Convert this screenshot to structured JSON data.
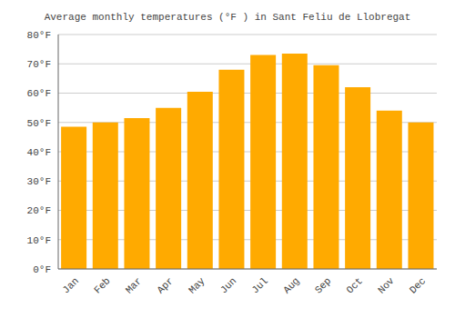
{
  "chart_data": {
    "type": "bar",
    "title": "Average monthly temperatures (°F ) in Sant Feliu de Llobregat",
    "categories": [
      "Jan",
      "Feb",
      "Mar",
      "Apr",
      "May",
      "Jun",
      "Jul",
      "Aug",
      "Sep",
      "Oct",
      "Nov",
      "Dec"
    ],
    "values": [
      48.5,
      50.0,
      51.5,
      55.0,
      60.5,
      68.0,
      73.0,
      73.5,
      69.5,
      62.0,
      54.0,
      50.0
    ],
    "color": "#FFAA00",
    "ylim": [
      0,
      80
    ],
    "yticks": [
      {
        "value": 0,
        "label": "0°F"
      },
      {
        "value": 10,
        "label": "10°F"
      },
      {
        "value": 20,
        "label": "20°F"
      },
      {
        "value": 30,
        "label": "30°F"
      },
      {
        "value": 40,
        "label": "40°F"
      },
      {
        "value": 50,
        "label": "50°F"
      },
      {
        "value": 60,
        "label": "60°F"
      },
      {
        "value": 70,
        "label": "70°F"
      },
      {
        "value": 80,
        "label": "80°F"
      }
    ],
    "grid": true
  }
}
